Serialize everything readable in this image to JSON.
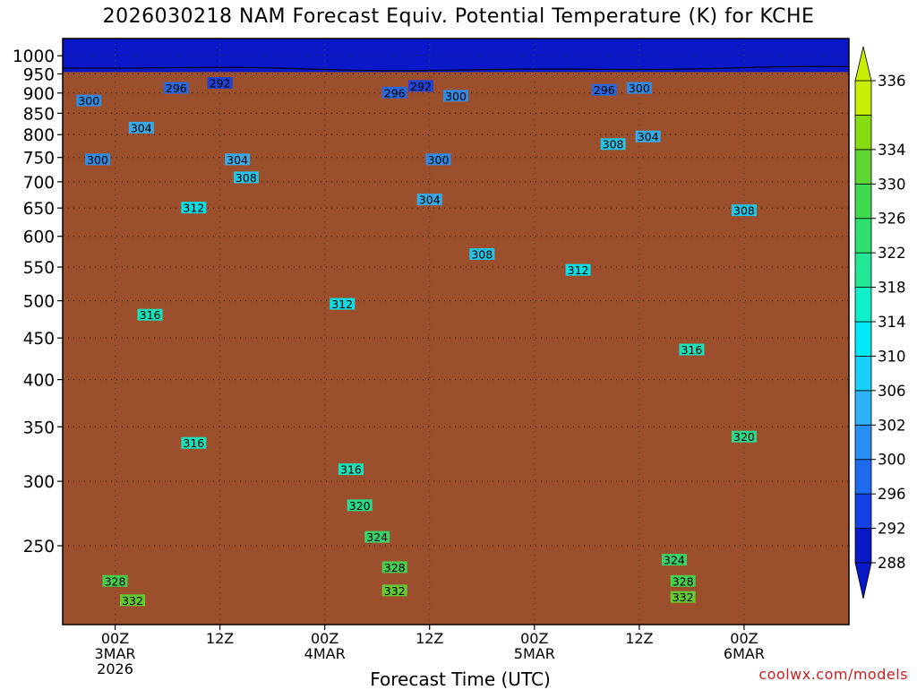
{
  "chart_data": {
    "type": "heatmap",
    "title": "2026030218 NAM Forecast Equiv. Potential Temperature (K) for KCHE",
    "xlabel": "Forecast Time (UTC)",
    "ylabel": "",
    "credit": "coolwx.com/models",
    "y_axis": {
      "scale": "log-pressure",
      "units": "hPa",
      "range": [
        1050,
        200
      ],
      "ticks": [
        250,
        300,
        350,
        400,
        450,
        500,
        550,
        600,
        650,
        700,
        750,
        800,
        850,
        900,
        950,
        1000
      ]
    },
    "x_axis": {
      "range": [
        "2026-03-02T18Z",
        "2026-03-06T12Z"
      ],
      "ticks": [
        {
          "t": "2026-03-03T00Z",
          "lines": [
            "00Z",
            "3MAR",
            "2026"
          ]
        },
        {
          "t": "2026-03-03T12Z",
          "lines": [
            "12Z"
          ]
        },
        {
          "t": "2026-03-04T00Z",
          "lines": [
            "00Z",
            "4MAR"
          ]
        },
        {
          "t": "2026-03-04T12Z",
          "lines": [
            "12Z"
          ]
        },
        {
          "t": "2026-03-05T00Z",
          "lines": [
            "00Z",
            "5MAR"
          ]
        },
        {
          "t": "2026-03-05T12Z",
          "lines": [
            "12Z"
          ]
        },
        {
          "t": "2026-03-06T00Z",
          "lines": [
            "00Z",
            "6MAR"
          ]
        }
      ]
    },
    "grid": true,
    "colorbar": {
      "placement": "right",
      "levels": [
        288,
        292,
        296,
        300,
        302,
        306,
        310,
        314,
        318,
        322,
        326,
        330,
        334,
        336
      ],
      "colors": [
        "#0a18c8",
        "#1440e6",
        "#1e6aee",
        "#2890f4",
        "#30b2f8",
        "#18d0fa",
        "#00eaf6",
        "#10f0c8",
        "#22e896",
        "#2ee070",
        "#40da50",
        "#5ed634",
        "#86dc10",
        "#c8ee06"
      ]
    },
    "ground_color": "#9c4f2c",
    "contour_labels": [
      {
        "text": "332",
        "t": "2026-03-03T02Z",
        "p": 214
      },
      {
        "text": "332",
        "t": "2026-03-04T08Z",
        "p": 220
      },
      {
        "text": "332",
        "t": "2026-03-05T17Z",
        "p": 216
      },
      {
        "text": "328",
        "t": "2026-03-03T00Z",
        "p": 226
      },
      {
        "text": "328",
        "t": "2026-03-04T08Z",
        "p": 235
      },
      {
        "text": "328",
        "t": "2026-03-05T17Z",
        "p": 226
      },
      {
        "text": "324",
        "t": "2026-03-04T06Z",
        "p": 256
      },
      {
        "text": "324",
        "t": "2026-03-05T16Z",
        "p": 240
      },
      {
        "text": "320",
        "t": "2026-03-04T04Z",
        "p": 280
      },
      {
        "text": "320",
        "t": "2026-03-06T00Z",
        "p": 340
      },
      {
        "text": "316",
        "t": "2026-03-03T09Z",
        "p": 334
      },
      {
        "text": "316",
        "t": "2026-03-04T03Z",
        "p": 310
      },
      {
        "text": "316",
        "t": "2026-03-05T18Z",
        "p": 435
      },
      {
        "text": "316",
        "t": "2026-03-03T04Z",
        "p": 480
      },
      {
        "text": "312",
        "t": "2026-03-04T02Z",
        "p": 495
      },
      {
        "text": "312",
        "t": "2026-03-05T05Z",
        "p": 545
      },
      {
        "text": "312",
        "t": "2026-03-03T09Z",
        "p": 650
      },
      {
        "text": "308",
        "t": "2026-03-04T18Z",
        "p": 570
      },
      {
        "text": "308",
        "t": "2026-03-03T15Z",
        "p": 708
      },
      {
        "text": "308",
        "t": "2026-03-05T09Z",
        "p": 778
      },
      {
        "text": "308",
        "t": "2026-03-06T00Z",
        "p": 645
      },
      {
        "text": "304",
        "t": "2026-03-04T12Z",
        "p": 665
      },
      {
        "text": "304",
        "t": "2026-03-03T14Z",
        "p": 745
      },
      {
        "text": "304",
        "t": "2026-03-03T03Z",
        "p": 815
      },
      {
        "text": "304",
        "t": "2026-03-05T13Z",
        "p": 795
      },
      {
        "text": "300",
        "t": "2026-03-02T22Z",
        "p": 745
      },
      {
        "text": "300",
        "t": "2026-03-04T13Z",
        "p": 745
      },
      {
        "text": "300",
        "t": "2026-03-02T21Z",
        "p": 880
      },
      {
        "text": "300",
        "t": "2026-03-04T15Z",
        "p": 892
      },
      {
        "text": "300",
        "t": "2026-03-05T12Z",
        "p": 912
      },
      {
        "text": "296",
        "t": "2026-03-03T07Z",
        "p": 912
      },
      {
        "text": "296",
        "t": "2026-03-04T08Z",
        "p": 900
      },
      {
        "text": "296",
        "t": "2026-03-05T08Z",
        "p": 907
      },
      {
        "text": "292",
        "t": "2026-03-03T12Z",
        "p": 925
      },
      {
        "text": "292",
        "t": "2026-03-04T11Z",
        "p": 917
      }
    ]
  }
}
